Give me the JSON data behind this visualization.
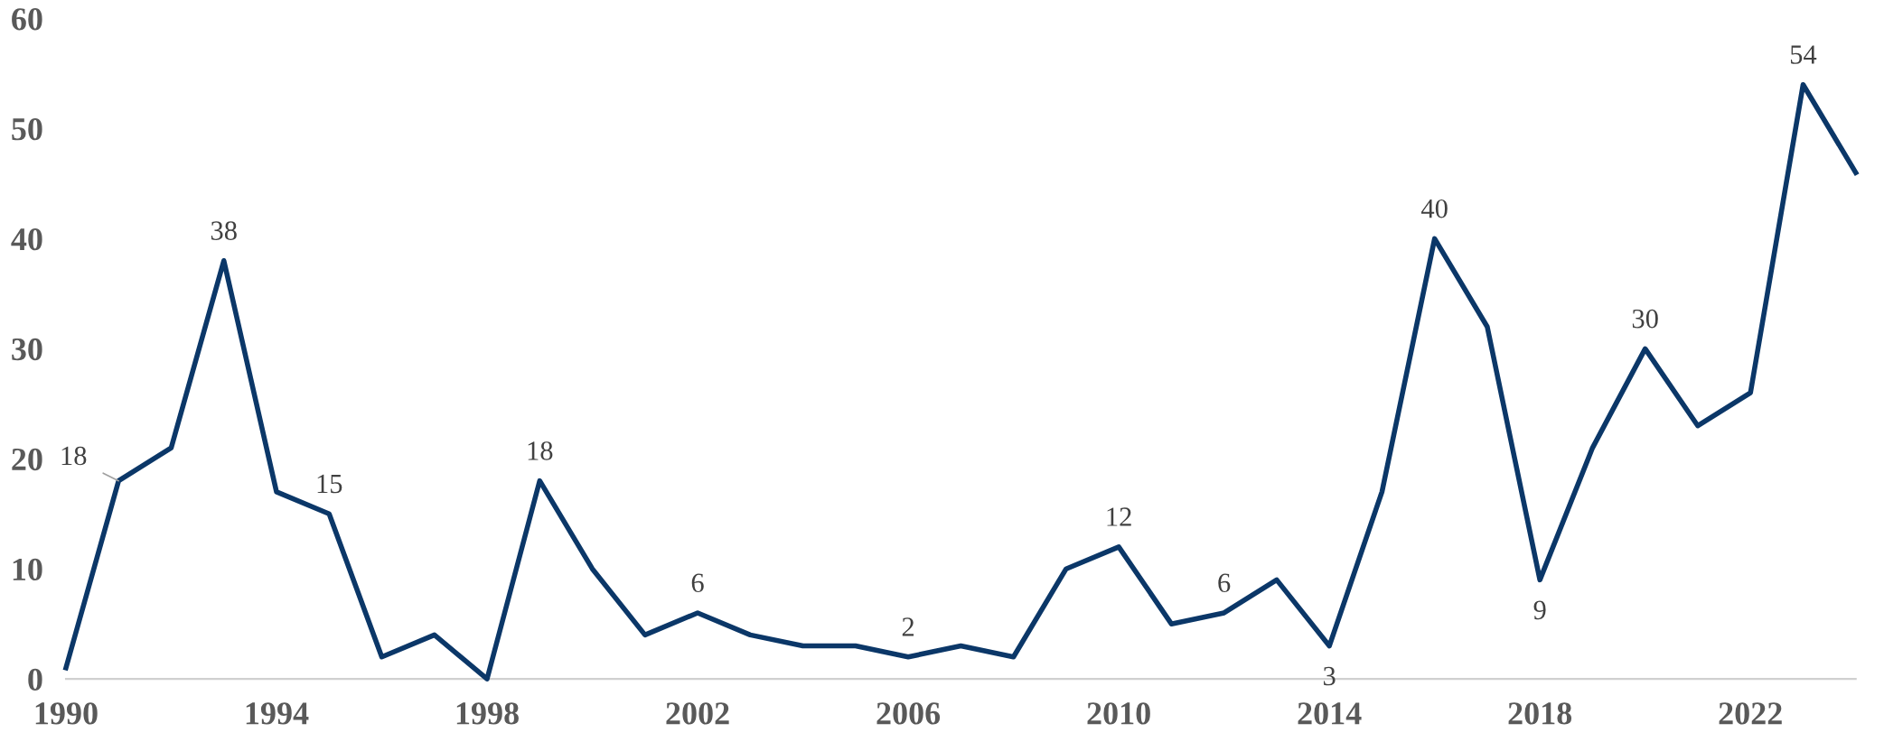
{
  "chart_data": {
    "type": "line",
    "x": [
      1990,
      1991,
      1992,
      1993,
      1994,
      1995,
      1996,
      1997,
      1998,
      1999,
      2000,
      2001,
      2002,
      2003,
      2004,
      2005,
      2006,
      2007,
      2008,
      2009,
      2010,
      2011,
      2012,
      2013,
      2014,
      2015,
      2016,
      2017,
      2018,
      2019,
      2020,
      2021,
      2022,
      2023,
      2024
    ],
    "series": [
      {
        "color": "#0b3768",
        "values": [
          1,
          18,
          21,
          38,
          17,
          15,
          2,
          4,
          0,
          18,
          10,
          4,
          6,
          4,
          3,
          3,
          2,
          3,
          2,
          10,
          12,
          5,
          6,
          9,
          3,
          17,
          40,
          32,
          9,
          21,
          30,
          23,
          26,
          54,
          46
        ],
        "value_labels": [
          null,
          "18",
          null,
          "38",
          null,
          "15",
          null,
          null,
          null,
          "18",
          null,
          null,
          "6",
          null,
          null,
          null,
          "2",
          null,
          null,
          null,
          "12",
          null,
          "6",
          null,
          "3",
          null,
          "40",
          null,
          "9",
          null,
          "30",
          null,
          null,
          "54",
          null
        ]
      }
    ],
    "xlim": [
      1990,
      2024
    ],
    "xticks": [
      1990,
      1994,
      1998,
      2002,
      2006,
      2010,
      2014,
      2018,
      2022
    ],
    "ylim": [
      0,
      60
    ],
    "yticks": [
      0,
      10,
      20,
      30,
      40,
      50,
      60
    ],
    "grid": false,
    "legend": false,
    "marker": "none",
    "line_style": "solid"
  }
}
